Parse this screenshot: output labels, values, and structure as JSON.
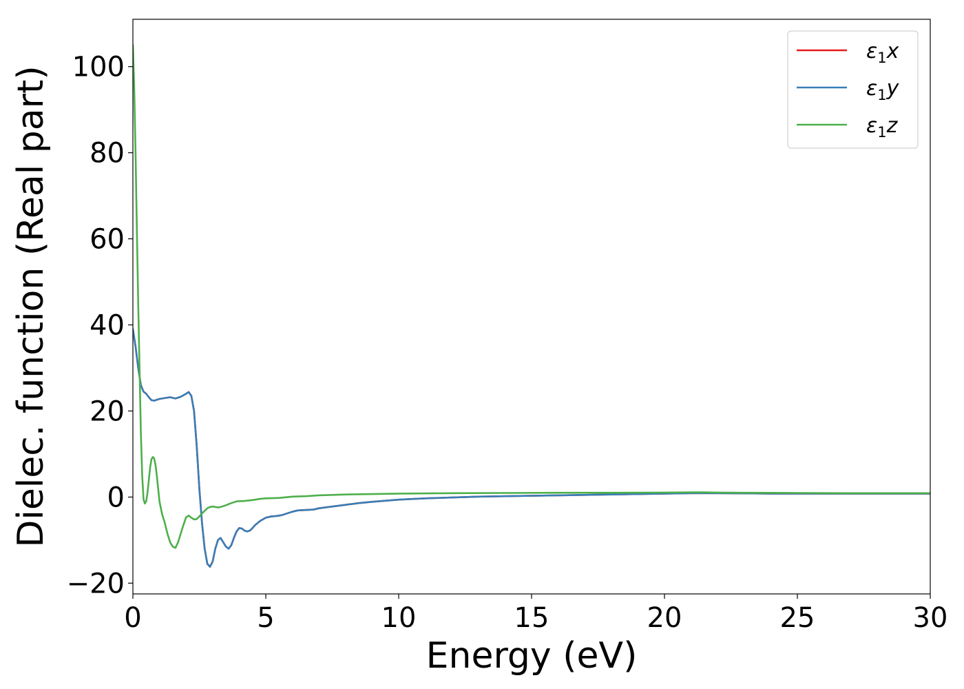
{
  "chart_data": {
    "type": "line",
    "xlabel": "Energy (eV)",
    "ylabel": "Dielec. function (Real part)",
    "xlim": [
      0,
      30
    ],
    "ylim": [
      -22.5,
      111
    ],
    "x_ticks": [
      "0",
      "5",
      "10",
      "15",
      "20",
      "25",
      "30"
    ],
    "y_ticks": [
      "−20",
      "0",
      "20",
      "40",
      "60",
      "80",
      "100"
    ],
    "grid": false,
    "legend_position": "top-right",
    "series": [
      {
        "name": "ε1x",
        "color": "#e41a1c",
        "x": [
          0,
          0.1,
          0.2,
          0.3,
          0.4,
          0.5,
          0.6,
          0.7,
          0.8,
          1.0,
          1.2,
          1.4,
          1.6,
          1.8,
          2.0,
          2.1,
          2.2,
          2.3,
          2.4,
          2.5,
          2.6,
          2.7,
          2.8,
          2.9,
          3.0,
          3.1,
          3.2,
          3.3,
          3.4,
          3.5,
          3.6,
          3.7,
          3.8,
          3.9,
          4.0,
          4.1,
          4.2,
          4.3,
          4.4,
          4.5,
          4.6,
          4.8,
          5.0,
          5.2,
          5.4,
          5.6,
          5.8,
          6.0,
          6.2,
          6.5,
          6.8,
          7.0,
          7.5,
          8.0,
          8.5,
          9.0,
          10.0,
          11.0,
          12.0,
          13.0,
          14.0,
          15.0,
          16.0,
          17.0,
          18.0,
          19.0,
          20.0,
          21.0,
          21.5,
          22.0,
          23.0,
          24.0,
          25.0,
          26.0,
          27.0,
          28.0,
          29.0,
          30.0
        ],
        "y": [
          39,
          35,
          30,
          26,
          24.5,
          24,
          23.2,
          22.5,
          22.4,
          22.8,
          23.0,
          23.2,
          22.9,
          23.3,
          24.0,
          24.4,
          23.5,
          20,
          12,
          2,
          -6,
          -12,
          -15.5,
          -16.2,
          -15.0,
          -12.0,
          -10.0,
          -9.5,
          -10.5,
          -11.5,
          -12.0,
          -11.2,
          -9.5,
          -8.0,
          -7.2,
          -7.3,
          -7.8,
          -8.0,
          -7.8,
          -7.2,
          -6.5,
          -5.5,
          -4.8,
          -4.5,
          -4.4,
          -4.2,
          -3.8,
          -3.4,
          -3.1,
          -3.0,
          -2.9,
          -2.6,
          -2.2,
          -1.8,
          -1.4,
          -1.1,
          -0.6,
          -0.3,
          -0.1,
          0.1,
          0.2,
          0.3,
          0.4,
          0.5,
          0.6,
          0.7,
          0.8,
          0.9,
          0.9,
          0.9,
          0.85,
          0.8,
          0.8,
          0.8,
          0.8,
          0.8,
          0.8,
          0.8
        ]
      },
      {
        "name": "ε1y",
        "color": "#377eb8",
        "x": [
          0,
          0.1,
          0.2,
          0.3,
          0.4,
          0.5,
          0.6,
          0.7,
          0.8,
          1.0,
          1.2,
          1.4,
          1.6,
          1.8,
          2.0,
          2.1,
          2.2,
          2.3,
          2.4,
          2.5,
          2.6,
          2.7,
          2.8,
          2.9,
          3.0,
          3.1,
          3.2,
          3.3,
          3.4,
          3.5,
          3.6,
          3.7,
          3.8,
          3.9,
          4.0,
          4.1,
          4.2,
          4.3,
          4.4,
          4.5,
          4.6,
          4.8,
          5.0,
          5.2,
          5.4,
          5.6,
          5.8,
          6.0,
          6.2,
          6.5,
          6.8,
          7.0,
          7.5,
          8.0,
          8.5,
          9.0,
          10.0,
          11.0,
          12.0,
          13.0,
          14.0,
          15.0,
          16.0,
          17.0,
          18.0,
          19.0,
          20.0,
          21.0,
          21.5,
          22.0,
          23.0,
          24.0,
          25.0,
          26.0,
          27.0,
          28.0,
          29.0,
          30.0
        ],
        "y": [
          39,
          35,
          30,
          26,
          24.5,
          24,
          23.2,
          22.5,
          22.4,
          22.8,
          23.0,
          23.2,
          22.9,
          23.3,
          24.0,
          24.4,
          23.5,
          20,
          12,
          2,
          -6,
          -12,
          -15.5,
          -16.2,
          -15.0,
          -12.0,
          -10.0,
          -9.5,
          -10.5,
          -11.5,
          -12.0,
          -11.2,
          -9.5,
          -8.0,
          -7.2,
          -7.3,
          -7.8,
          -8.0,
          -7.8,
          -7.2,
          -6.5,
          -5.5,
          -4.8,
          -4.5,
          -4.4,
          -4.2,
          -3.8,
          -3.4,
          -3.1,
          -3.0,
          -2.9,
          -2.6,
          -2.2,
          -1.8,
          -1.4,
          -1.1,
          -0.6,
          -0.3,
          -0.1,
          0.1,
          0.2,
          0.3,
          0.4,
          0.5,
          0.6,
          0.7,
          0.8,
          0.9,
          0.9,
          0.9,
          0.85,
          0.8,
          0.8,
          0.8,
          0.8,
          0.8,
          0.8,
          0.8
        ]
      },
      {
        "name": "ε1z",
        "color": "#4daf4a",
        "x": [
          0,
          0.05,
          0.1,
          0.15,
          0.2,
          0.25,
          0.3,
          0.35,
          0.4,
          0.45,
          0.5,
          0.55,
          0.6,
          0.65,
          0.7,
          0.75,
          0.8,
          0.85,
          0.9,
          0.95,
          1.0,
          1.1,
          1.2,
          1.3,
          1.4,
          1.5,
          1.6,
          1.7,
          1.8,
          1.9,
          2.0,
          2.1,
          2.2,
          2.3,
          2.4,
          2.5,
          2.6,
          2.7,
          2.8,
          2.9,
          3.0,
          3.1,
          3.2,
          3.3,
          3.5,
          3.7,
          3.9,
          4.2,
          4.5,
          4.8,
          5.0,
          5.5,
          6.0,
          6.5,
          7.0,
          8.0,
          9.0,
          10.0,
          12.0,
          14.0,
          16.0,
          18.0,
          20.0,
          21.0,
          21.5,
          22.0,
          23.0,
          25.0,
          27.0,
          30.0
        ],
        "y": [
          105,
          95,
          80,
          62,
          45,
          30,
          15,
          5,
          -0.5,
          -1.5,
          -1.0,
          1.0,
          4.0,
          7.0,
          8.8,
          9.3,
          9.0,
          7.5,
          5.0,
          2.0,
          -1.0,
          -4.0,
          -6.0,
          -8.5,
          -10.5,
          -11.5,
          -11.8,
          -10.5,
          -8.5,
          -6.5,
          -4.7,
          -4.3,
          -4.8,
          -5.2,
          -5.1,
          -4.5,
          -3.8,
          -3.2,
          -2.6,
          -2.3,
          -2.2,
          -2.3,
          -2.4,
          -2.3,
          -1.9,
          -1.4,
          -1.0,
          -0.9,
          -0.7,
          -0.4,
          -0.3,
          -0.2,
          0.1,
          0.2,
          0.4,
          0.6,
          0.7,
          0.8,
          0.9,
          0.95,
          1.0,
          1.0,
          1.05,
          1.1,
          1.1,
          1.05,
          1.0,
          0.95,
          0.9,
          0.9
        ]
      }
    ]
  }
}
